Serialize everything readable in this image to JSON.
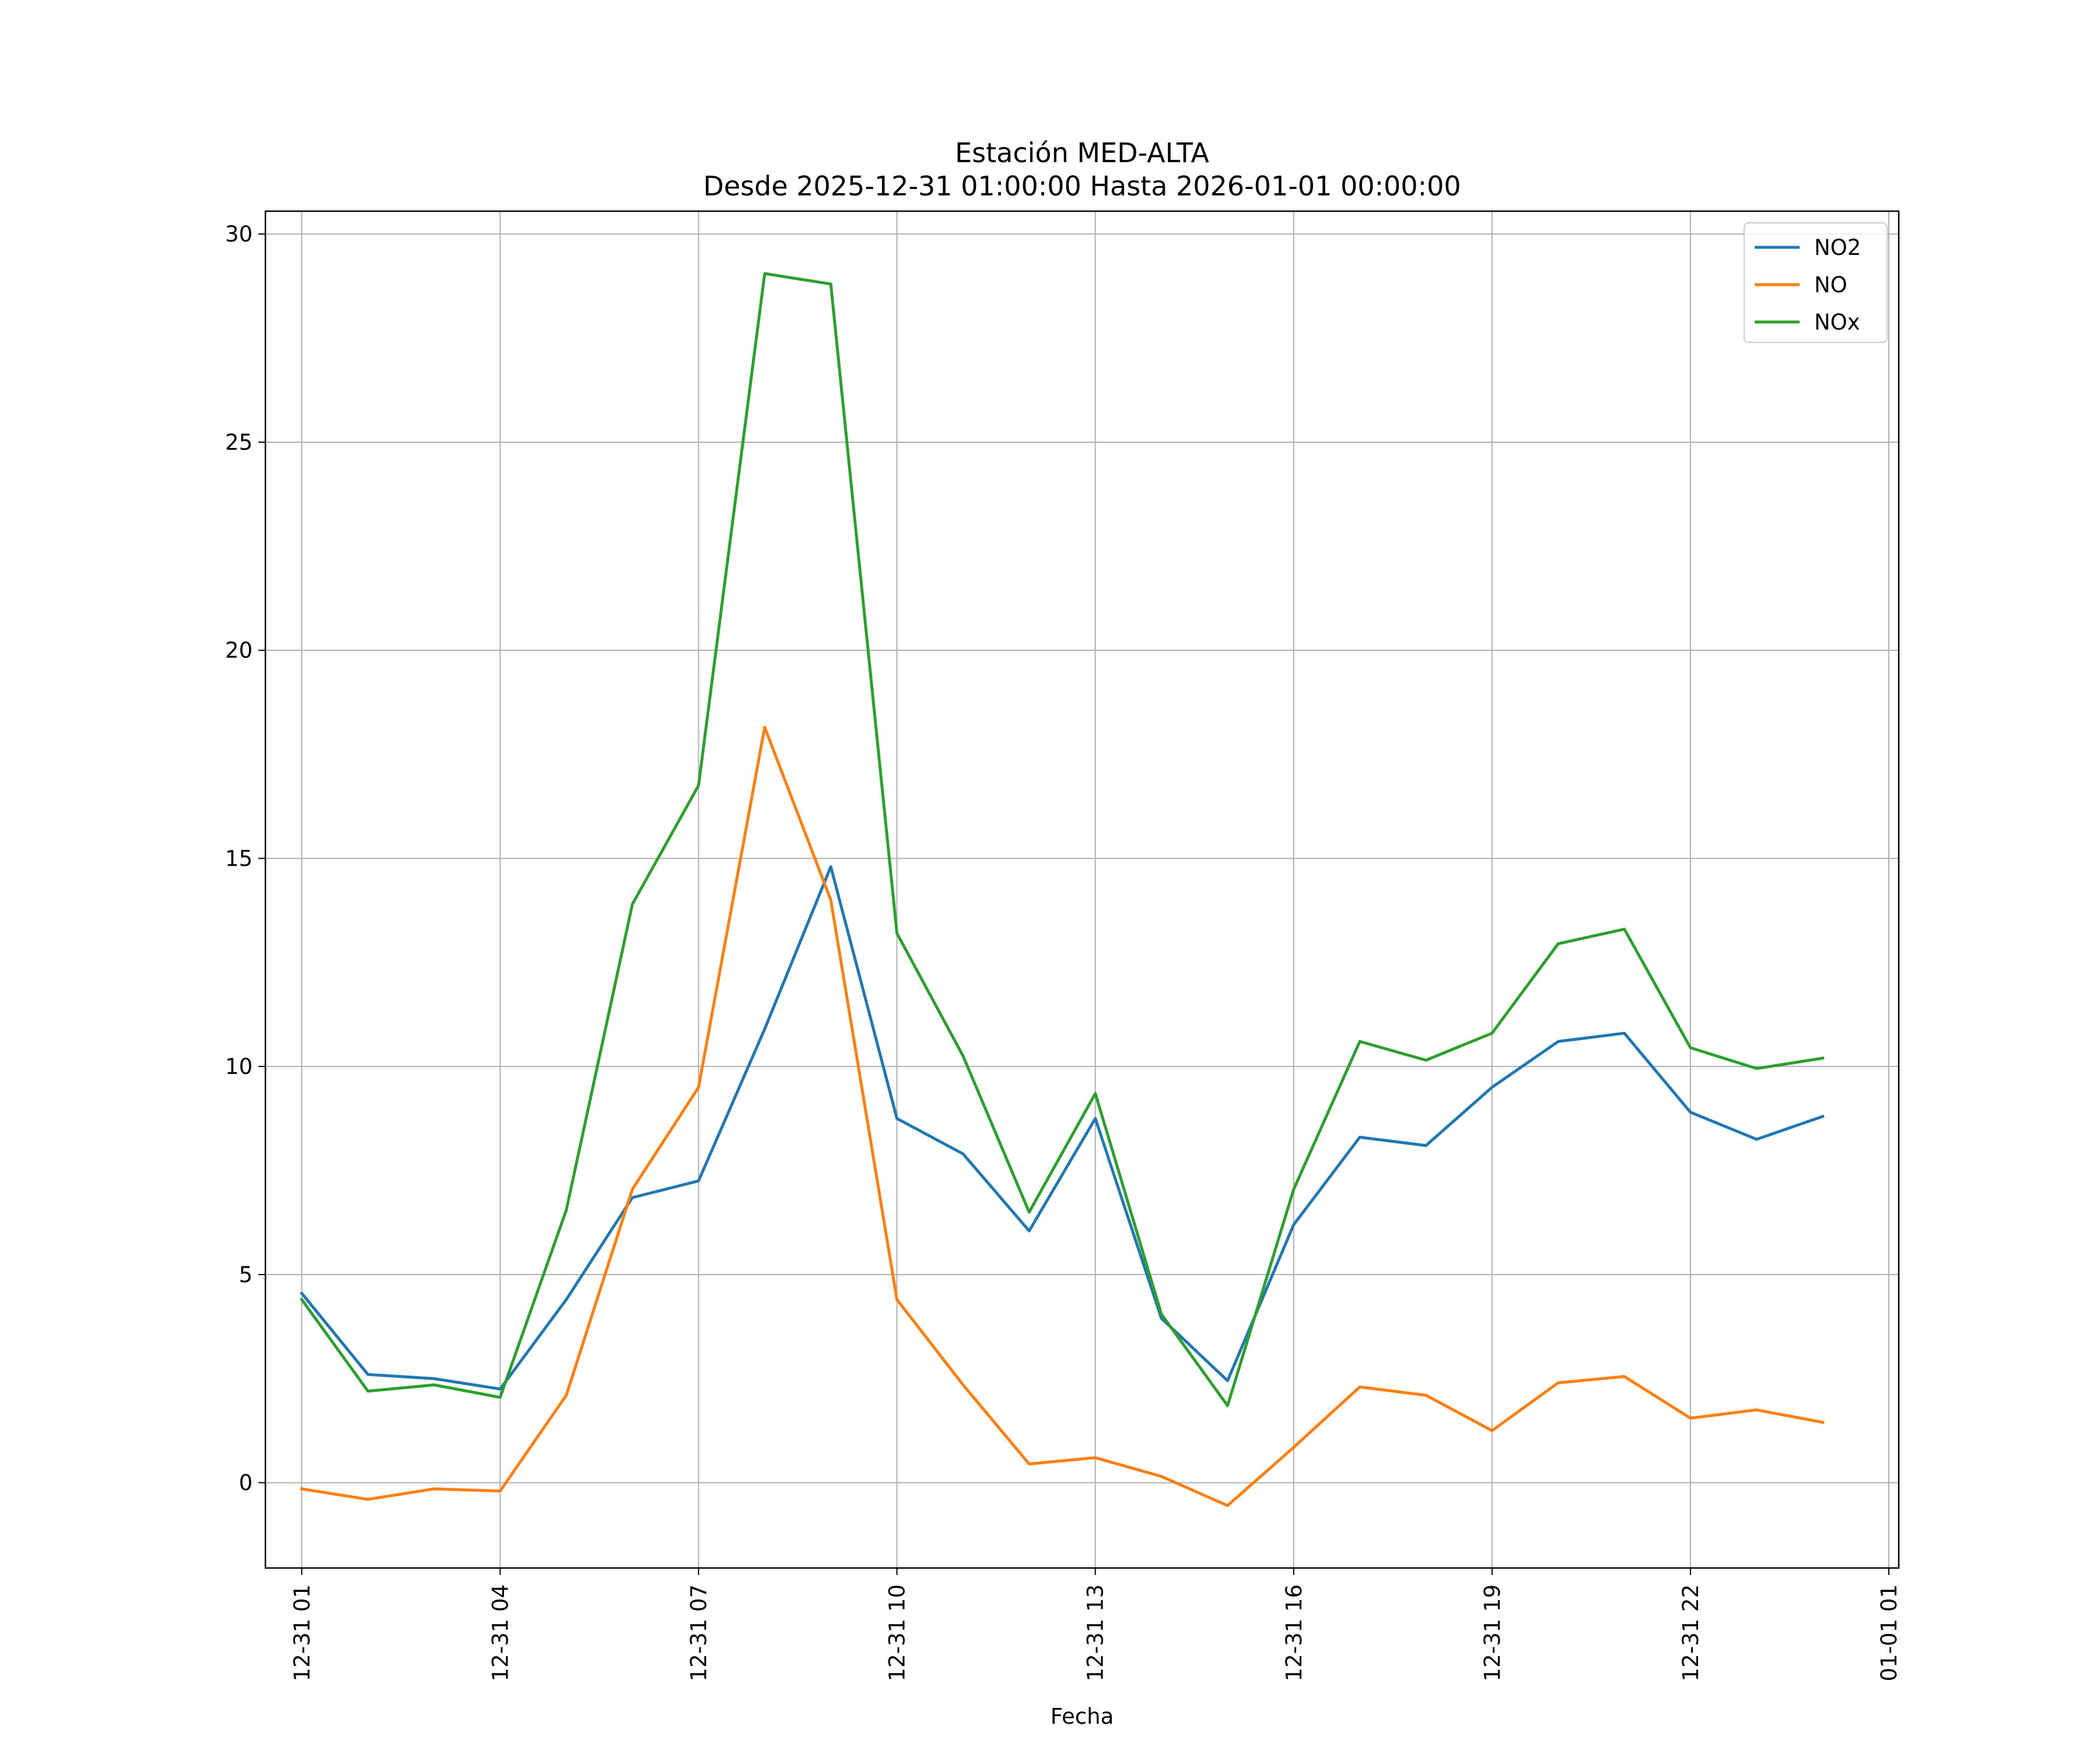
{
  "chart_data": {
    "type": "line",
    "title": "Estación MED-ALTA",
    "subtitle": "Desde 2025-12-31 01:00:00 Hasta 2026-01-01 00:00:00",
    "xlabel": "Fecha",
    "ylabel": "",
    "x": [
      "12-31 01",
      "12-31 02",
      "12-31 03",
      "12-31 04",
      "12-31 05",
      "12-31 06",
      "12-31 07",
      "12-31 08",
      "12-31 09",
      "12-31 10",
      "12-31 11",
      "12-31 12",
      "12-31 13",
      "12-31 14",
      "12-31 15",
      "12-31 16",
      "12-31 17",
      "12-31 18",
      "12-31 19",
      "12-31 20",
      "12-31 21",
      "12-31 22",
      "12-31 23",
      "01-01 00"
    ],
    "x_tick_labels": [
      "12-31 01",
      "12-31 04",
      "12-31 07",
      "12-31 10",
      "12-31 13",
      "12-31 16",
      "12-31 19",
      "12-31 22",
      "01-01 01"
    ],
    "xlim_hours": [
      -0.55,
      24.15
    ],
    "ylim": [
      -2.05,
      30.55
    ],
    "y_ticks": [
      0,
      5,
      10,
      15,
      20,
      25,
      30
    ],
    "grid": true,
    "legend_position": "top-right",
    "series": [
      {
        "name": "NO2",
        "color": "#1f77b4",
        "values": [
          4.55,
          2.6,
          2.5,
          2.25,
          4.4,
          6.85,
          7.25,
          10.9,
          14.8,
          8.75,
          7.9,
          6.05,
          8.75,
          3.95,
          2.45,
          6.2,
          8.3,
          8.1,
          9.5,
          10.6,
          10.8,
          8.9,
          8.25,
          8.8
        ]
      },
      {
        "name": "NO",
        "color": "#ff7f0e",
        "values": [
          -0.15,
          -0.4,
          -0.15,
          -0.2,
          2.1,
          7.05,
          9.5,
          18.15,
          14.0,
          4.4,
          2.35,
          0.45,
          0.6,
          0.15,
          -0.55,
          0.85,
          2.3,
          2.1,
          1.25,
          2.4,
          2.55,
          1.55,
          1.75,
          1.45
        ]
      },
      {
        "name": "NOx",
        "color": "#2ca02c",
        "values": [
          4.4,
          2.2,
          2.35,
          2.05,
          6.55,
          13.9,
          16.75,
          29.05,
          28.8,
          13.2,
          10.25,
          6.5,
          9.35,
          4.05,
          1.85,
          7.05,
          10.6,
          10.15,
          10.8,
          12.95,
          13.3,
          10.45,
          9.95,
          10.2
        ]
      }
    ]
  }
}
